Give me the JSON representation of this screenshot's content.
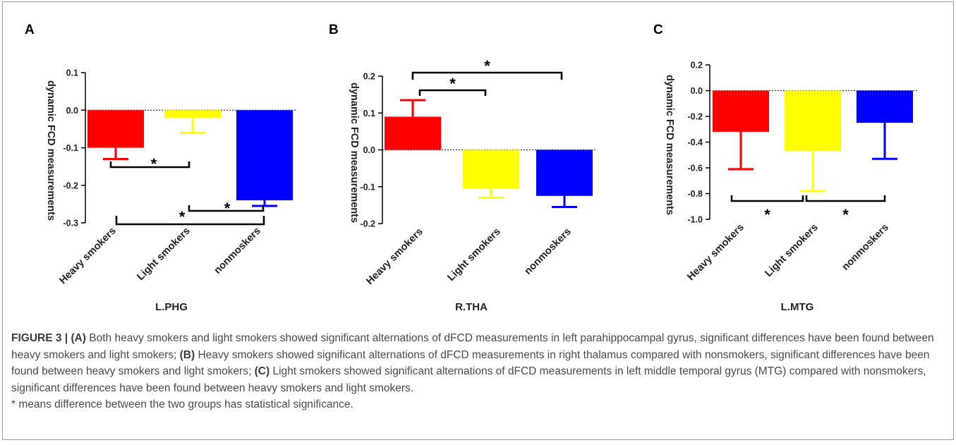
{
  "figure": {
    "caption_label": "FIGURE 3 |"
  },
  "caption": {
    "a_label": "(A)",
    "a_text": " Both heavy smokers and light smokers showed significant alternations of dFCD measurements in left parahippocampal gyrus, significant differences have been found between heavy smokers and light smokers; ",
    "b_label": "(B)",
    "b_text": " Heavy smokers showed significant alternations of dFCD measurements in right thalamus compared with nonsmokers, significant differences have been found between heavy smokers and light smokers; ",
    "c_label": "(C)",
    "c_text": " Light smokers showed significant alternations of dFCD measurements in left middle temporal gyrus (MTG) compared with nonsmokers, significant differences have been found between heavy smokers and light smokers.",
    "note": "* means difference between the two groups has statistical significance."
  },
  "chart_data": [
    {
      "panel": "A",
      "type": "bar",
      "xlabel": "L.PHG",
      "ylabel": "dynamic FCD measurements",
      "categories": [
        "Heavy smokers",
        "Light smokers",
        "nonmoskers"
      ],
      "values": [
        -0.1,
        -0.02,
        -0.24
      ],
      "errors": [
        0.03,
        0.04,
        0.015
      ],
      "colors": [
        "#ff0000",
        "#ffff00",
        "#0000ff"
      ],
      "ylim": [
        -0.3,
        0.1
      ],
      "yticks": [
        -0.3,
        -0.2,
        -0.1,
        0.0,
        0.1
      ],
      "ytick_labels": [
        "-0.3",
        "-0.2",
        "-0.1",
        "0.0",
        "0.1"
      ],
      "significance": [
        {
          "from": 0,
          "to": 1,
          "label": "*"
        },
        {
          "from": 1,
          "to": 2,
          "label": "*"
        },
        {
          "from": 0,
          "to": 2,
          "label": "*"
        }
      ]
    },
    {
      "panel": "B",
      "type": "bar",
      "xlabel": "R.THA",
      "ylabel": "dynamic FCD measurements",
      "categories": [
        "Heavy smokers",
        "Light smokers",
        "nonmoskers"
      ],
      "values": [
        0.09,
        -0.105,
        -0.125
      ],
      "errors": [
        0.045,
        0.025,
        0.03
      ],
      "colors": [
        "#ff0000",
        "#ffff00",
        "#0000ff"
      ],
      "ylim": [
        -0.2,
        0.2
      ],
      "yticks": [
        -0.2,
        -0.1,
        0.0,
        0.1,
        0.2
      ],
      "ytick_labels": [
        "-0.2",
        "-0.1",
        "0.0",
        "0.1",
        "0.2"
      ],
      "significance": [
        {
          "from": 0,
          "to": 1,
          "label": "*"
        },
        {
          "from": 0,
          "to": 2,
          "label": "*"
        }
      ]
    },
    {
      "panel": "C",
      "type": "bar",
      "xlabel": "L.MTG",
      "ylabel": "dynamic FCD measurements",
      "categories": [
        "Heavy smokers",
        "Light smokers",
        "nonmoskers"
      ],
      "values": [
        -0.32,
        -0.47,
        -0.25
      ],
      "errors": [
        0.29,
        0.31,
        0.28
      ],
      "colors": [
        "#ff0000",
        "#ffff00",
        "#0000ff"
      ],
      "ylim": [
        -1.0,
        0.2
      ],
      "yticks": [
        -1.0,
        -0.8,
        -0.6,
        -0.4,
        -0.2,
        0.0,
        0.2
      ],
      "ytick_labels": [
        "-1.0",
        "-0.8",
        "-0.6",
        "-0.4",
        "-0.2",
        "0.0",
        "0.2"
      ],
      "significance": [
        {
          "from": 0,
          "to": 1,
          "label": "*"
        },
        {
          "from": 1,
          "to": 2,
          "label": "*"
        }
      ]
    }
  ]
}
